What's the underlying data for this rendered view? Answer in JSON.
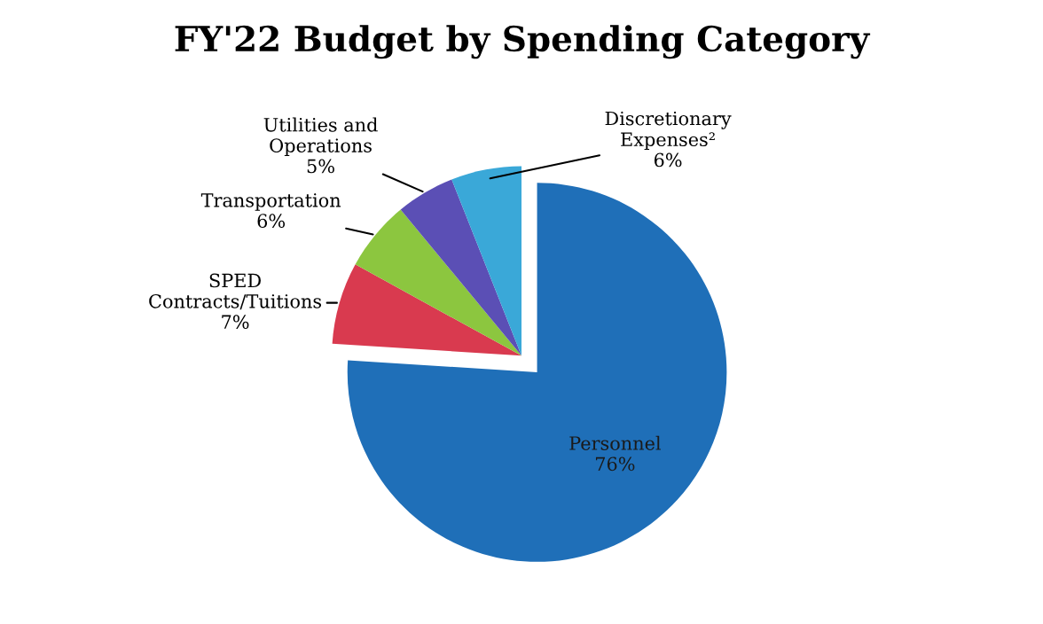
{
  "chart_data": {
    "type": "pie",
    "title": "FY'22 Budget by Spending Category",
    "categories": [
      "Personnel",
      "SPED\nContracts/Tuitions",
      "Transportation",
      "Utilities and\nOperations",
      "Discretionary\nExpenses²"
    ],
    "values": [
      76,
      7,
      6,
      5,
      6
    ],
    "value_labels": [
      "76%",
      "7%",
      "6%",
      "5%",
      "6%"
    ],
    "colors": [
      "#1f6fb8",
      "#d93a4f",
      "#8cc63f",
      "#5b4fb5",
      "#3aa8d8"
    ],
    "legend": false
  }
}
